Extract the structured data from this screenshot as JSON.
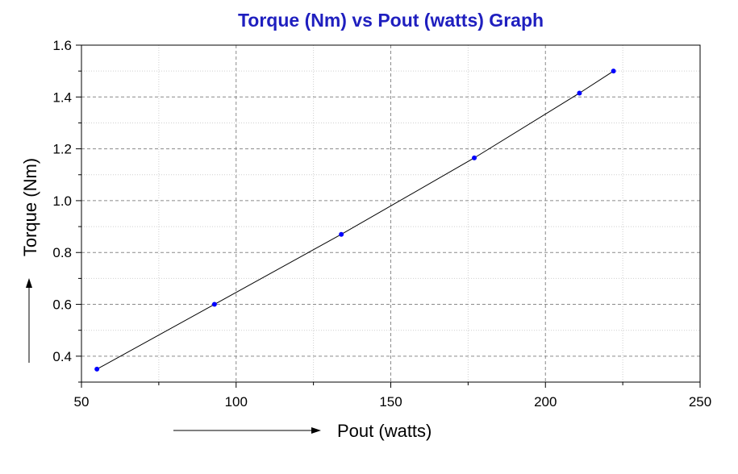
{
  "chart_data": {
    "type": "line",
    "title": "Torque (Nm) vs Pout (watts) Graph",
    "xlabel": "Pout (watts)",
    "ylabel": "Torque (Nm)",
    "xlim": [
      50,
      250
    ],
    "ylim": [
      0.3,
      1.6
    ],
    "xticks": [
      "50",
      "100",
      "150",
      "200",
      "250"
    ],
    "yticks": [
      "0.4",
      "0.6",
      "0.8",
      "1.0",
      "1.2",
      "1.4",
      "1.6"
    ],
    "grid": true,
    "series": [
      {
        "x": [
          55,
          93,
          134,
          177,
          211,
          222
        ],
        "y": [
          0.35,
          0.6,
          0.87,
          1.165,
          1.415,
          1.5
        ]
      }
    ],
    "colors": {
      "title": "#1f1fbf",
      "line": "#000000",
      "marker": "#0000ff",
      "grid": "#b0b0b0"
    }
  }
}
